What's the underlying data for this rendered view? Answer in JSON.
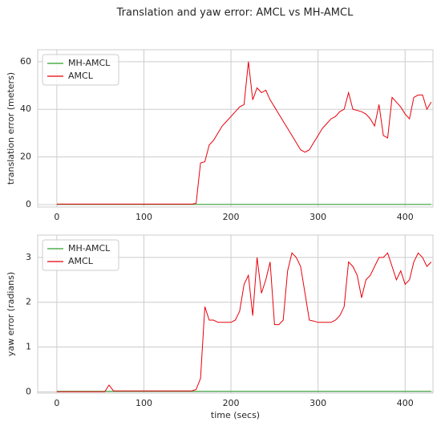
{
  "title": "Translation and yaw error: AMCL vs MH-AMCL",
  "chart_data": [
    {
      "type": "line",
      "ylabel": "translation error (meters)",
      "legend": "upper left",
      "grid": true,
      "xlim": [
        -22,
        432
      ],
      "ylim": [
        -1,
        65
      ],
      "xticks": [
        0,
        100,
        200,
        300,
        400
      ],
      "yticks": [
        0,
        20,
        40,
        60
      ],
      "x": [
        0,
        5,
        10,
        15,
        20,
        25,
        30,
        35,
        40,
        45,
        50,
        55,
        60,
        65,
        70,
        75,
        80,
        85,
        90,
        95,
        100,
        105,
        110,
        115,
        120,
        125,
        130,
        135,
        140,
        145,
        150,
        155,
        160,
        165,
        170,
        175,
        180,
        185,
        190,
        195,
        200,
        205,
        210,
        215,
        220,
        225,
        230,
        235,
        240,
        245,
        250,
        255,
        260,
        265,
        270,
        275,
        280,
        285,
        290,
        295,
        300,
        305,
        310,
        315,
        320,
        325,
        330,
        335,
        340,
        345,
        350,
        355,
        360,
        365,
        370,
        375,
        380,
        385,
        390,
        395,
        400,
        405,
        410,
        415,
        420,
        425,
        430
      ],
      "series": [
        {
          "name": "MH-AMCL",
          "color": "#2ca02c",
          "values": [
            0.1,
            0.1,
            0.1,
            0.1,
            0.1,
            0.1,
            0.1,
            0.1,
            0.1,
            0.1,
            0.1,
            0.1,
            0.1,
            0.1,
            0.1,
            0.1,
            0.1,
            0.1,
            0.1,
            0.1,
            0.1,
            0.1,
            0.1,
            0.1,
            0.1,
            0.1,
            0.1,
            0.1,
            0.1,
            0.1,
            0.1,
            0.1,
            0.1,
            0.1,
            0.1,
            0.1,
            0.1,
            0.1,
            0.1,
            0.1,
            0.1,
            0.1,
            0.1,
            0.1,
            0.1,
            0.1,
            0.1,
            0.1,
            0.1,
            0.1,
            0.1,
            0.1,
            0.1,
            0.1,
            0.1,
            0.1,
            0.1,
            0.1,
            0.1,
            0.1,
            0.1,
            0.1,
            0.1,
            0.1,
            0.1,
            0.1,
            0.1,
            0.1,
            0.1,
            0.1,
            0.1,
            0.1,
            0.1,
            0.1,
            0.1,
            0.1,
            0.1,
            0.1,
            0.1,
            0.1,
            0.1,
            0.1,
            0.1,
            0.1,
            0.1,
            0.1,
            0.1
          ]
        },
        {
          "name": "AMCL",
          "color": "#e8000b",
          "values": [
            0.2,
            0.2,
            0.2,
            0.2,
            0.2,
            0.2,
            0.2,
            0.2,
            0.2,
            0.2,
            0.2,
            0.2,
            0.2,
            0.2,
            0.2,
            0.2,
            0.2,
            0.2,
            0.2,
            0.2,
            0.2,
            0.2,
            0.2,
            0.2,
            0.2,
            0.2,
            0.2,
            0.2,
            0.2,
            0.2,
            0.2,
            0.2,
            0.5,
            17.5,
            18,
            25,
            27,
            30,
            33,
            35,
            37,
            39,
            41,
            42,
            60,
            44,
            49,
            47,
            48,
            44,
            41,
            38,
            35,
            32,
            29,
            26,
            23,
            22,
            23,
            26,
            29,
            32,
            34,
            36,
            37,
            39,
            40,
            47,
            40,
            39.5,
            39,
            38,
            36,
            33,
            42,
            29,
            28,
            45,
            43,
            41,
            38,
            36,
            45,
            46,
            46,
            40,
            43
          ]
        }
      ]
    },
    {
      "type": "line",
      "ylabel": "yaw error (radians)",
      "xlabel": "time (secs)",
      "legend": "upper left",
      "grid": true,
      "xlim": [
        -22,
        432
      ],
      "ylim": [
        -0.03,
        3.5
      ],
      "xticks": [
        0,
        100,
        200,
        300,
        400
      ],
      "yticks": [
        0,
        1,
        2,
        3
      ],
      "x": [
        0,
        5,
        10,
        15,
        20,
        25,
        30,
        35,
        40,
        45,
        50,
        55,
        60,
        65,
        70,
        75,
        80,
        85,
        90,
        95,
        100,
        105,
        110,
        115,
        120,
        125,
        130,
        135,
        140,
        145,
        150,
        155,
        160,
        165,
        170,
        175,
        180,
        185,
        190,
        195,
        200,
        205,
        210,
        215,
        220,
        225,
        230,
        235,
        240,
        245,
        250,
        255,
        260,
        265,
        270,
        275,
        280,
        285,
        290,
        295,
        300,
        305,
        310,
        315,
        320,
        325,
        330,
        335,
        340,
        345,
        350,
        355,
        360,
        365,
        370,
        375,
        380,
        385,
        390,
        395,
        400,
        405,
        410,
        415,
        420,
        425,
        430
      ],
      "series": [
        {
          "name": "MH-AMCL",
          "color": "#2ca02c",
          "values": [
            0.01,
            0.01,
            0.01,
            0.01,
            0.01,
            0.01,
            0.01,
            0.01,
            0.01,
            0.01,
            0.01,
            0.01,
            0.01,
            0.01,
            0.01,
            0.01,
            0.01,
            0.01,
            0.01,
            0.01,
            0.01,
            0.01,
            0.01,
            0.01,
            0.01,
            0.01,
            0.01,
            0.01,
            0.01,
            0.01,
            0.01,
            0.01,
            0.01,
            0.01,
            0.01,
            0.01,
            0.01,
            0.01,
            0.01,
            0.01,
            0.01,
            0.01,
            0.01,
            0.01,
            0.01,
            0.01,
            0.01,
            0.01,
            0.01,
            0.01,
            0.01,
            0.01,
            0.01,
            0.01,
            0.01,
            0.01,
            0.01,
            0.01,
            0.01,
            0.01,
            0.01,
            0.01,
            0.01,
            0.01,
            0.01,
            0.01,
            0.01,
            0.01,
            0.01,
            0.01,
            0.01,
            0.01,
            0.01,
            0.01,
            0.01,
            0.01,
            0.01,
            0.01,
            0.01,
            0.01,
            0.01,
            0.01,
            0.01,
            0.01,
            0.01,
            0.01,
            0.01
          ]
        },
        {
          "name": "AMCL",
          "color": "#e8000b",
          "values": [
            0,
            0,
            0,
            0,
            0,
            0,
            0,
            0,
            0,
            0,
            0,
            0,
            0.15,
            0.02,
            0.02,
            0.02,
            0.02,
            0.02,
            0.02,
            0.02,
            0.02,
            0.02,
            0.02,
            0.02,
            0.02,
            0.02,
            0.02,
            0.02,
            0.02,
            0.02,
            0.02,
            0.02,
            0.05,
            0.3,
            1.9,
            1.6,
            1.6,
            1.55,
            1.55,
            1.55,
            1.55,
            1.6,
            1.8,
            2.4,
            2.6,
            1.7,
            3.0,
            2.2,
            2.5,
            2.9,
            1.5,
            1.5,
            1.6,
            2.7,
            3.1,
            3.0,
            2.8,
            2.2,
            1.6,
            1.58,
            1.55,
            1.55,
            1.55,
            1.55,
            1.6,
            1.7,
            1.9,
            2.9,
            2.8,
            2.6,
            2.1,
            2.5,
            2.6,
            2.8,
            3.0,
            3.0,
            3.1,
            2.8,
            2.5,
            2.7,
            2.4,
            2.5,
            2.9,
            3.1,
            3.0,
            2.8,
            2.9
          ]
        }
      ]
    }
  ]
}
